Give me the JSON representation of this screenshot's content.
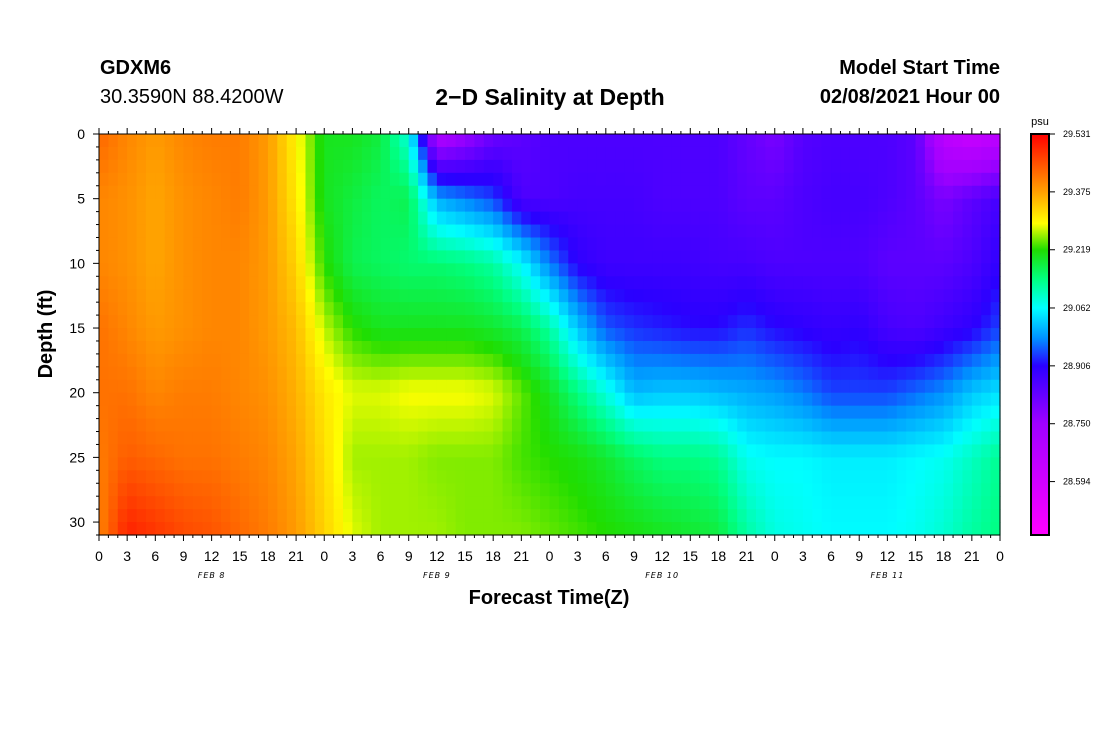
{
  "header": {
    "station_id": "GDXM6",
    "coords": "30.3590N 88.4200W",
    "title": "2−D Salinity at Depth",
    "start_label": "Model Start Time",
    "start_value": "02/08/2021 Hour 00"
  },
  "chart_data": {
    "type": "heatmap",
    "title": "2−D Salinity at Depth",
    "xlabel": "Forecast Time(Z)",
    "ylabel": "Depth (ft)",
    "x_tick_labels": [
      "0",
      "3",
      "6",
      "9",
      "12",
      "15",
      "18",
      "21",
      "0",
      "3",
      "6",
      "9",
      "12",
      "15",
      "18",
      "21",
      "0",
      "3",
      "6",
      "9",
      "12",
      "15",
      "18",
      "21",
      "0",
      "3",
      "6",
      "9",
      "12",
      "15",
      "18",
      "21",
      "0"
    ],
    "x_range_hours": [
      0,
      96
    ],
    "date_labels": [
      {
        "text": "FEB 8",
        "hour": 12
      },
      {
        "text": "FEB 9",
        "hour": 36
      },
      {
        "text": "FEB 10",
        "hour": 60
      },
      {
        "text": "FEB 11",
        "hour": 84
      }
    ],
    "y_ticks": [
      0,
      5,
      10,
      15,
      20,
      25,
      30
    ],
    "ylim": [
      31,
      0
    ],
    "colorbar": {
      "unit": "psu",
      "min": 28.45,
      "max": 29.531,
      "labels": [
        "29.531",
        "29.375",
        "29.219",
        "29.062",
        "28.906",
        "28.750",
        "28.594"
      ],
      "stops": [
        {
          "v": 28.45,
          "color": "#ff00ff"
        },
        {
          "v": 28.75,
          "color": "#a000ff"
        },
        {
          "v": 28.906,
          "color": "#2a00ff"
        },
        {
          "v": 28.98,
          "color": "#0090ff"
        },
        {
          "v": 29.062,
          "color": "#00ffff"
        },
        {
          "v": 29.14,
          "color": "#00ff80"
        },
        {
          "v": 29.219,
          "color": "#20dd00"
        },
        {
          "v": 29.29,
          "color": "#ffff00"
        },
        {
          "v": 29.375,
          "color": "#ffa000"
        },
        {
          "v": 29.531,
          "color": "#ff0000"
        }
      ]
    },
    "field_description": "salinity (psu) vs forecast hour and depth",
    "field": {
      "hours": [
        0,
        3,
        6,
        9,
        12,
        15,
        18,
        21,
        24,
        27,
        30,
        33,
        36,
        39,
        42,
        45,
        48,
        51,
        54,
        57,
        60,
        63,
        66,
        69,
        72,
        75,
        78,
        81,
        84,
        87,
        90,
        93,
        96
      ],
      "depths": [
        0,
        5,
        10,
        15,
        20,
        25,
        31
      ],
      "values": [
        [
          29.43,
          29.4,
          29.4,
          29.42,
          29.42,
          29.41,
          29.4
        ],
        [
          29.4,
          29.39,
          29.39,
          29.4,
          29.42,
          29.44,
          29.5
        ],
        [
          29.38,
          29.37,
          29.37,
          29.38,
          29.4,
          29.43,
          29.48
        ],
        [
          29.4,
          29.39,
          29.39,
          29.39,
          29.41,
          29.42,
          29.46
        ],
        [
          29.41,
          29.4,
          29.4,
          29.4,
          29.41,
          29.42,
          29.45
        ],
        [
          29.41,
          29.41,
          29.4,
          29.4,
          29.4,
          29.41,
          29.43
        ],
        [
          29.38,
          29.38,
          29.38,
          29.38,
          29.39,
          29.4,
          29.41
        ],
        [
          29.3,
          29.31,
          29.33,
          29.35,
          29.36,
          29.37,
          29.38
        ],
        [
          29.2,
          29.2,
          29.22,
          29.27,
          29.31,
          29.32,
          29.33
        ],
        [
          29.2,
          29.18,
          29.17,
          29.22,
          29.28,
          29.26,
          29.28
        ],
        [
          29.18,
          29.16,
          29.16,
          29.2,
          29.28,
          29.26,
          29.26
        ],
        [
          29.08,
          29.17,
          29.15,
          29.2,
          29.29,
          29.26,
          29.26
        ],
        [
          28.7,
          29.0,
          29.15,
          29.2,
          29.29,
          29.25,
          29.26
        ],
        [
          28.75,
          28.97,
          29.14,
          29.2,
          29.29,
          29.25,
          29.25
        ],
        [
          28.82,
          28.94,
          29.12,
          29.19,
          29.28,
          29.25,
          29.25
        ],
        [
          28.84,
          28.86,
          29.06,
          29.17,
          29.24,
          29.23,
          29.25
        ],
        [
          28.86,
          28.86,
          28.97,
          29.12,
          29.2,
          29.22,
          29.24
        ],
        [
          28.86,
          28.87,
          28.9,
          29.02,
          29.14,
          29.21,
          29.23
        ],
        [
          28.86,
          28.87,
          28.88,
          28.95,
          29.08,
          29.19,
          29.22
        ],
        [
          28.86,
          28.87,
          28.88,
          28.93,
          29.01,
          29.16,
          29.21
        ],
        [
          28.86,
          28.86,
          28.88,
          28.92,
          29.02,
          29.14,
          29.2
        ],
        [
          28.86,
          28.86,
          28.88,
          28.91,
          29.02,
          29.14,
          29.19
        ],
        [
          28.86,
          28.86,
          28.87,
          28.91,
          29.01,
          29.13,
          29.18
        ],
        [
          28.83,
          28.84,
          28.87,
          28.93,
          29.0,
          29.07,
          29.12
        ],
        [
          28.8,
          28.84,
          28.86,
          28.91,
          28.99,
          29.06,
          29.08
        ],
        [
          28.85,
          28.86,
          28.86,
          28.9,
          28.97,
          29.06,
          29.07
        ],
        [
          28.86,
          28.87,
          28.86,
          28.89,
          28.94,
          29.05,
          29.06
        ],
        [
          28.86,
          28.87,
          28.86,
          28.9,
          28.94,
          29.05,
          29.06
        ],
        [
          28.86,
          28.86,
          28.84,
          28.87,
          28.94,
          29.05,
          29.06
        ],
        [
          28.84,
          28.84,
          28.84,
          28.86,
          28.96,
          29.06,
          29.07
        ],
        [
          28.66,
          28.8,
          28.84,
          28.88,
          28.98,
          29.07,
          29.09
        ],
        [
          28.62,
          28.84,
          28.86,
          28.9,
          29.02,
          29.1,
          29.12
        ],
        [
          28.66,
          28.87,
          28.9,
          28.94,
          29.04,
          29.13,
          29.14
        ]
      ]
    }
  }
}
